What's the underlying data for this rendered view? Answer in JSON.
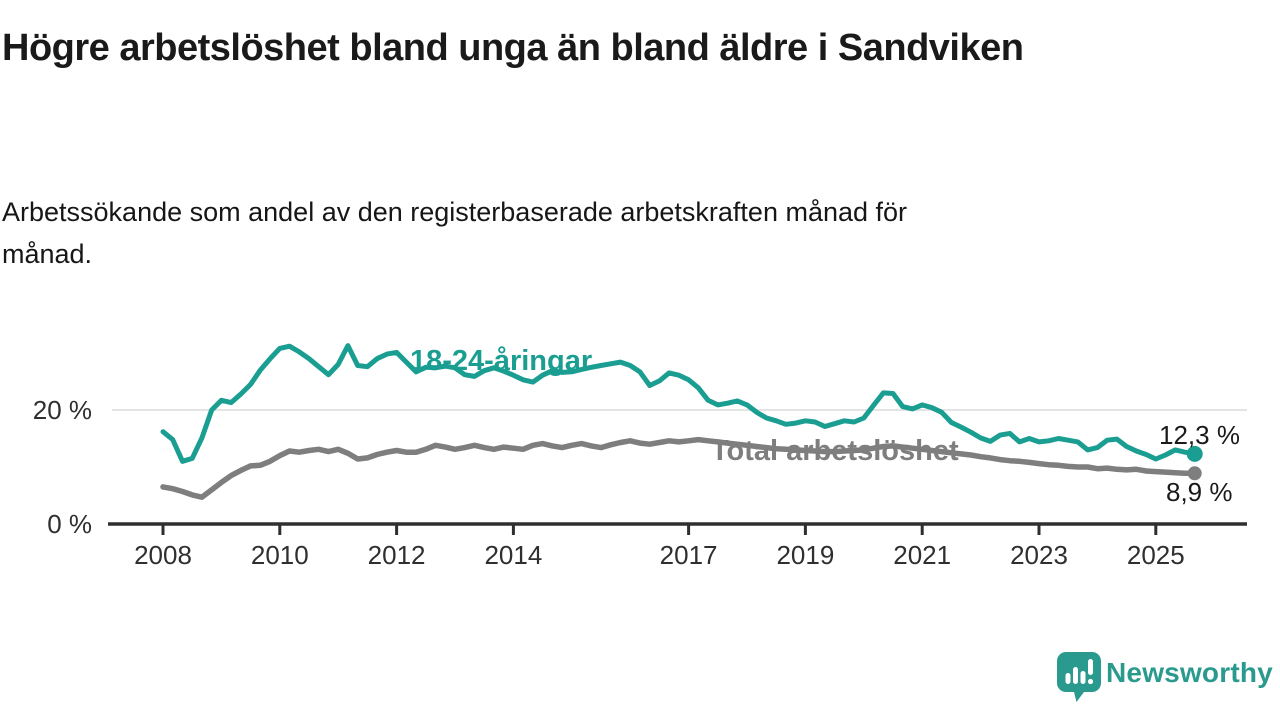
{
  "header": {
    "title_lines": [
      "Högre arbetslöshet bland unga än bland äldre i",
      "Sandviken"
    ],
    "subtitle_lines": [
      "Arbetssökande som andel av den registerbaserade arbetskraften månad för",
      "månad."
    ]
  },
  "chart_data": {
    "type": "line",
    "title": "Högre arbetslöshet bland unga än bland äldre i Sandviken",
    "subtitle": "Arbetssökande som andel av den registerbaserade arbetskraften månad för månad.",
    "unit": "%",
    "x_start_year": 2008,
    "x_step_years": 0.1667,
    "x_end_year": 2025.67,
    "xlim": [
      2007.9,
      2026.5
    ],
    "ylim": [
      0,
      33
    ],
    "grid": "single light horizontal gridline at 20 %",
    "legend_position": "inline labels on lines",
    "x_axis_ticks": [
      "2008",
      "2010",
      "2012",
      "2014",
      "2017",
      "2019",
      "2021",
      "2023",
      "2025"
    ],
    "x_axis_tick_years": [
      2008,
      2010,
      2012,
      2014,
      2017,
      2019,
      2021,
      2023,
      2025
    ],
    "y_axis_ticks": [
      {
        "value": 0,
        "label": "0 %"
      },
      {
        "value": 20,
        "label": "20 %"
      }
    ],
    "series": [
      {
        "name": "18-24-åringar",
        "color": "#1b9e92",
        "end_label": "12,3 %",
        "end_value": 12.3,
        "values": [
          16.2,
          14.8,
          11.0,
          11.5,
          15.1,
          20.0,
          21.7,
          21.3,
          22.8,
          24.5,
          27.0,
          29.0,
          30.8,
          31.2,
          30.2,
          29.0,
          27.6,
          26.2,
          28.0,
          31.3,
          27.8,
          27.6,
          29.0,
          29.8,
          30.1,
          28.4,
          26.7,
          27.5,
          27.4,
          27.7,
          27.4,
          26.2,
          25.9,
          26.9,
          27.4,
          26.8,
          26.1,
          25.3,
          24.9,
          26.1,
          26.9,
          26.6,
          26.7,
          27.1,
          27.5,
          27.8,
          28.1,
          28.4,
          27.8,
          26.7,
          24.3,
          25.1,
          26.5,
          26.1,
          25.3,
          23.9,
          21.7,
          20.9,
          21.2,
          21.6,
          20.9,
          19.6,
          18.6,
          18.1,
          17.5,
          17.7,
          18.1,
          17.9,
          17.1,
          17.6,
          18.1,
          17.9,
          18.6,
          20.8,
          23.0,
          22.9,
          20.6,
          20.2,
          20.9,
          20.4,
          19.6,
          17.8,
          17.0,
          16.1,
          15.1,
          14.5,
          15.6,
          15.9,
          14.4,
          15.0,
          14.4,
          14.6,
          15.0,
          14.7,
          14.4,
          13.0,
          13.4,
          14.7,
          14.9,
          13.6,
          12.8,
          12.2,
          11.4,
          12.1,
          13.0,
          12.6,
          12.3
        ]
      },
      {
        "name": "Total arbetslöshet",
        "color": "#7e7e7e",
        "end_label": "8,9 %",
        "end_value": 8.9,
        "values": [
          6.5,
          6.2,
          5.7,
          5.1,
          4.7,
          6.0,
          7.3,
          8.5,
          9.4,
          10.2,
          10.3,
          11.0,
          12.0,
          12.8,
          12.6,
          12.9,
          13.1,
          12.7,
          13.1,
          12.4,
          11.4,
          11.6,
          12.2,
          12.6,
          12.9,
          12.6,
          12.6,
          13.1,
          13.8,
          13.5,
          13.1,
          13.4,
          13.8,
          13.4,
          13.1,
          13.5,
          13.3,
          13.1,
          13.8,
          14.1,
          13.7,
          13.4,
          13.8,
          14.1,
          13.7,
          13.4,
          13.9,
          14.3,
          14.6,
          14.2,
          14.0,
          14.3,
          14.6,
          14.4,
          14.6,
          14.8,
          14.6,
          14.4,
          14.2,
          14.0,
          13.8,
          13.6,
          13.4,
          13.2,
          13.1,
          13.0,
          12.9,
          12.8,
          12.7,
          12.7,
          12.8,
          12.9,
          13.0,
          13.3,
          13.6,
          13.7,
          13.5,
          13.3,
          13.1,
          12.9,
          12.7,
          12.5,
          12.3,
          12.1,
          11.8,
          11.6,
          11.3,
          11.1,
          11.0,
          10.8,
          10.6,
          10.4,
          10.3,
          10.1,
          10.0,
          10.0,
          9.7,
          9.8,
          9.6,
          9.5,
          9.6,
          9.3,
          9.2,
          9.1,
          9.0,
          8.9,
          8.9
        ]
      }
    ]
  },
  "footer": {
    "brand": "Newsworthy"
  },
  "colors": {
    "accent_teal": "#1b9e92",
    "series_gray": "#7e7e7e",
    "axis": "#2f2f2f",
    "gridline": "#dbdbdb",
    "text": "#1a1a1a",
    "background": "#ffffff"
  }
}
